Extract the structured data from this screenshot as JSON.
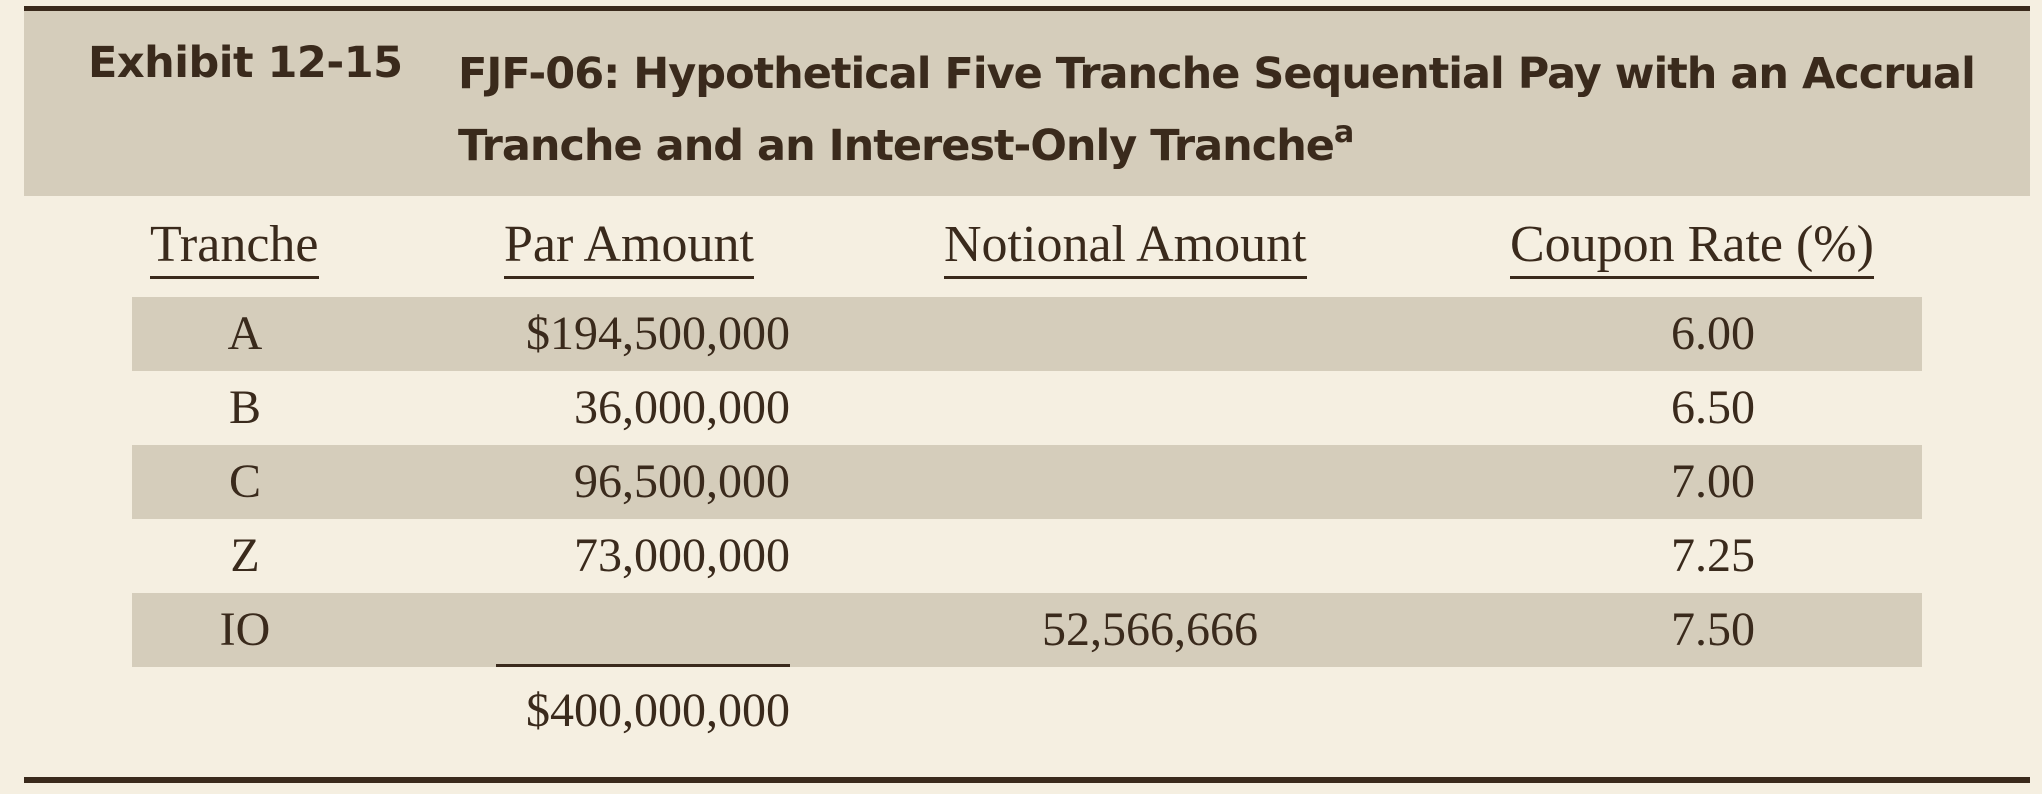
{
  "exhibit": {
    "label": "Exhibit 12-15",
    "title_line1": "FJF-06: Hypothetical Five Tranche Sequential Pay with an Accrual",
    "title_line2": "Tranche and an Interest-Only Tranche",
    "title_footnote_marker": "a"
  },
  "table": {
    "headers": {
      "tranche": "Tranche",
      "par_amount": "Par Amount",
      "notional_amount": "Notional Amount",
      "coupon_rate": "Coupon Rate (%)"
    },
    "rows": [
      {
        "tranche": "A",
        "par_amount": "$194,500,000",
        "notional_amount": "",
        "coupon_rate": "6.00"
      },
      {
        "tranche": "B",
        "par_amount": "36,000,000",
        "notional_amount": "",
        "coupon_rate": "6.50"
      },
      {
        "tranche": "C",
        "par_amount": "96,500,000",
        "notional_amount": "",
        "coupon_rate": "7.00"
      },
      {
        "tranche": "Z",
        "par_amount": "73,000,000",
        "notional_amount": "",
        "coupon_rate": "7.25"
      },
      {
        "tranche": "IO",
        "par_amount": "",
        "notional_amount": "52,566,666",
        "coupon_rate": "7.50"
      }
    ],
    "total": {
      "par_amount": "$400,000,000"
    }
  },
  "colors": {
    "background": "#f5efe1",
    "band": "#d5cdbb",
    "ink": "#3a2a1c"
  }
}
